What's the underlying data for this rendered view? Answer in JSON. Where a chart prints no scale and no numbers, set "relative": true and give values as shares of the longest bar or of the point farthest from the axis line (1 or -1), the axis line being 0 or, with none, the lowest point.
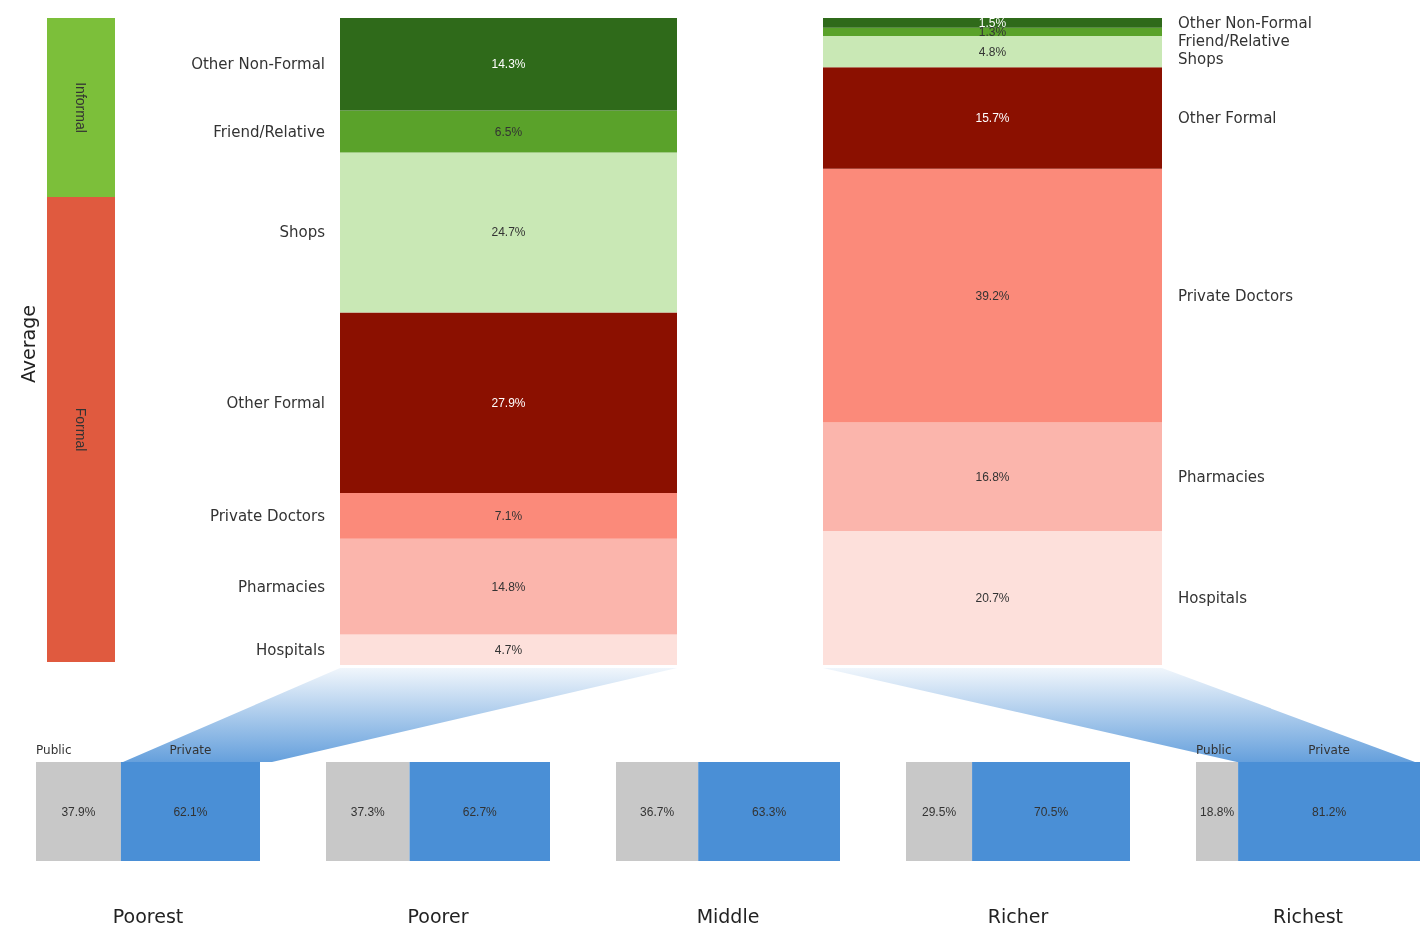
{
  "chart_data": [
    {
      "type": "bar",
      "stacked": true,
      "relative": true,
      "ylabel": "Average",
      "categories": [
        null
      ],
      "series": [
        {
          "name": "Formal",
          "color": "#e05a3f",
          "values": [
            0.722
          ]
        },
        {
          "name": "Informal",
          "color": "#7cbf3a",
          "values": [
            0.278
          ]
        }
      ]
    },
    {
      "type": "bar",
      "stacked": true,
      "categories": [
        null
      ],
      "ylim": [
        0,
        100
      ],
      "series": [
        {
          "name": "Hospitals",
          "color": "#fde0db",
          "values": [
            4.7
          ],
          "value_labels": [
            "4.7%"
          ]
        },
        {
          "name": "Pharmacies",
          "color": "#fbb5ac",
          "values": [
            14.8
          ],
          "value_labels": [
            "14.8%"
          ]
        },
        {
          "name": "Private Doctors",
          "color": "#fb8a7a",
          "values": [
            7.1
          ],
          "value_labels": [
            "7.1%"
          ]
        },
        {
          "name": "Other Formal",
          "color": "#8b1000",
          "values": [
            27.9
          ],
          "value_labels": [
            "27.9%"
          ]
        },
        {
          "name": "Shops",
          "color": "#c9e8b5",
          "values": [
            24.7
          ],
          "value_labels": [
            "24.7%"
          ]
        },
        {
          "name": "Friend/Relative",
          "color": "#5aa22a",
          "values": [
            6.5
          ],
          "value_labels": [
            "6.5%"
          ]
        },
        {
          "name": "Other Non-Formal",
          "color": "#2f6a1a",
          "values": [
            14.3
          ],
          "value_labels": [
            "14.3%"
          ]
        }
      ]
    },
    {
      "type": "bar",
      "stacked": true,
      "categories": [
        null
      ],
      "ylim": [
        0,
        100
      ],
      "series": [
        {
          "name": "Hospitals",
          "color": "#fde0db",
          "values": [
            20.7
          ],
          "value_labels": [
            "20.7%"
          ]
        },
        {
          "name": "Pharmacies",
          "color": "#fbb5ac",
          "values": [
            16.8
          ],
          "value_labels": [
            "16.8%"
          ]
        },
        {
          "name": "Private Doctors",
          "color": "#fb8a7a",
          "values": [
            39.2
          ],
          "value_labels": [
            "39.2%"
          ]
        },
        {
          "name": "Other Formal",
          "color": "#8b1000",
          "values": [
            15.7
          ],
          "value_labels": [
            "15.7%"
          ]
        },
        {
          "name": "Shops",
          "color": "#c9e8b5",
          "values": [
            4.8
          ],
          "value_labels": [
            "4.8%"
          ]
        },
        {
          "name": "Friend/Relative",
          "color": "#5aa22a",
          "values": [
            1.3
          ],
          "value_labels": [
            "1.3%"
          ]
        },
        {
          "name": "Other Non-Formal",
          "color": "#2f6a1a",
          "values": [
            1.5
          ],
          "value_labels": [
            "1.5%"
          ]
        }
      ]
    },
    {
      "type": "bar",
      "stacked": true,
      "orientation": "horizontal",
      "categories": [
        null
      ],
      "xlim": [
        0,
        100
      ],
      "xlabel": "Poorest",
      "series": [
        {
          "name": "Public",
          "color": "#c8c8c8",
          "values": [
            37.9
          ],
          "value_labels": [
            "37.9%"
          ]
        },
        {
          "name": "Private",
          "color": "#4a8fd6",
          "values": [
            62.1
          ],
          "value_labels": [
            "62.1%"
          ]
        }
      ]
    },
    {
      "type": "bar",
      "stacked": true,
      "orientation": "horizontal",
      "categories": [
        null
      ],
      "xlim": [
        0,
        100
      ],
      "xlabel": "Poorer",
      "series": [
        {
          "color": "#c8c8c8",
          "values": [
            37.3
          ],
          "value_labels": [
            "37.3%"
          ]
        },
        {
          "color": "#4a8fd6",
          "values": [
            62.7
          ],
          "value_labels": [
            "62.7%"
          ]
        }
      ]
    },
    {
      "type": "bar",
      "stacked": true,
      "orientation": "horizontal",
      "categories": [
        null
      ],
      "xlim": [
        0,
        100
      ],
      "xlabel": "Middle",
      "series": [
        {
          "color": "#c8c8c8",
          "values": [
            36.7
          ],
          "value_labels": [
            "36.7%"
          ]
        },
        {
          "color": "#4a8fd6",
          "values": [
            63.3
          ],
          "value_labels": [
            "63.3%"
          ]
        }
      ]
    },
    {
      "type": "bar",
      "stacked": true,
      "orientation": "horizontal",
      "categories": [
        null
      ],
      "xlim": [
        0,
        100
      ],
      "xlabel": "Richer",
      "series": [
        {
          "color": "#c8c8c8",
          "values": [
            29.5
          ],
          "value_labels": [
            "29.5%"
          ]
        },
        {
          "color": "#4a8fd6",
          "values": [
            70.5
          ],
          "value_labels": [
            "70.5%"
          ]
        }
      ]
    },
    {
      "type": "bar",
      "stacked": true,
      "orientation": "horizontal",
      "categories": [
        null
      ],
      "xlim": [
        0,
        100
      ],
      "xlabel": "Richest",
      "series": [
        {
          "name": "Public",
          "color": "#c8c8c8",
          "values": [
            18.8
          ],
          "value_labels": [
            "18.8%"
          ]
        },
        {
          "name": "Private",
          "color": "#4a8fd6",
          "values": [
            81.2
          ],
          "value_labels": [
            "81.2%"
          ]
        }
      ]
    }
  ]
}
